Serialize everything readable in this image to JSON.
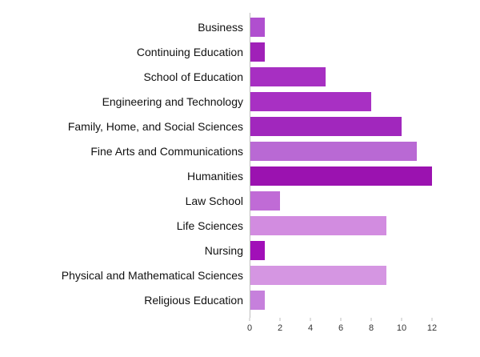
{
  "chart_data": {
    "type": "bar",
    "orientation": "horizontal",
    "categories": [
      "Business",
      "Continuing Education",
      "School of Education",
      "Engineering and Technology",
      "Family, Home, and Social Sciences",
      "Fine Arts and Communications",
      "Humanities",
      "Law School",
      "Life Sciences",
      "Nursing",
      "Physical and Mathematical Sciences",
      "Religious Education"
    ],
    "values": [
      1,
      1,
      5,
      8,
      10,
      11,
      12,
      2,
      9,
      1,
      9,
      1
    ],
    "colors": [
      "#b04fcf",
      "#a021b8",
      "#a72fc2",
      "#a830c3",
      "#a127bd",
      "#b969d4",
      "#9b12b0",
      "#c06bd6",
      "#d28ce0",
      "#a10fb8",
      "#d596e2",
      "#c680dc"
    ],
    "xticks": [
      "0",
      "2",
      "4",
      "6",
      "8",
      "10",
      "12"
    ],
    "xlim": [
      0,
      12
    ],
    "grid": false,
    "title": "",
    "xlabel": "",
    "ylabel": ""
  }
}
